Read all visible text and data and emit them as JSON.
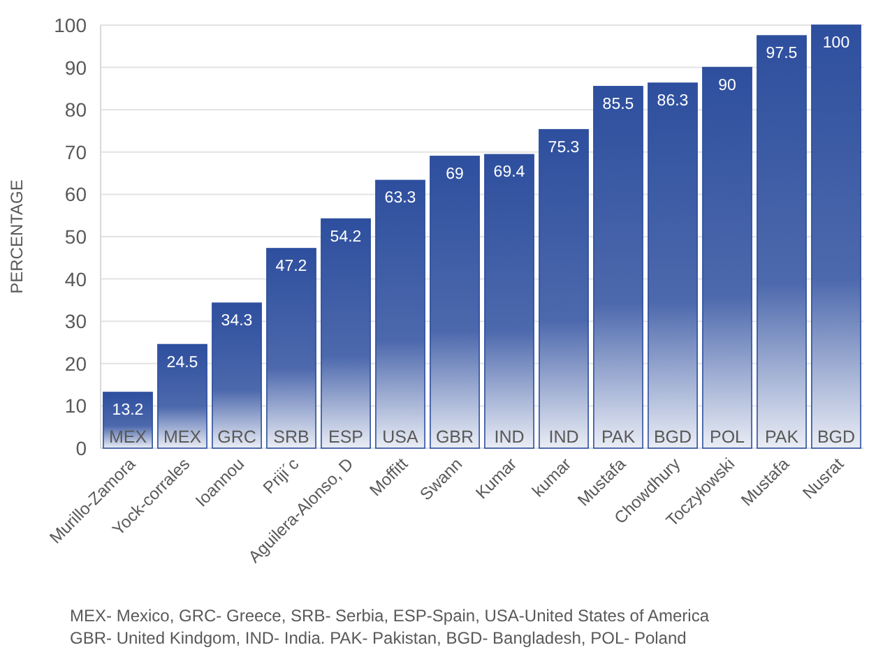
{
  "chart_data": {
    "type": "bar",
    "ylabel": "PERCENTAGE",
    "categories": [
      "Murillo-Zamora",
      "Yock-corrales",
      "Ioannou",
      "Priji´c",
      "Aguilera-Alonso, D",
      "Moffitt",
      "Swann",
      "Kumar",
      "kumar",
      "Mustafa",
      "Chowdhury",
      "Toczyłowski",
      "Mustafa",
      "Nusrat"
    ],
    "values": [
      13.2,
      24.5,
      34.3,
      47.2,
      54.2,
      63.3,
      69,
      69.4,
      75.3,
      85.5,
      86.3,
      90,
      97.5,
      100
    ],
    "color": "#2e4f9e",
    "data_labels": true,
    "ylim": [
      0,
      100
    ],
    "yticks": [
      0,
      10,
      20,
      30,
      40,
      50,
      60,
      70,
      80,
      90,
      100
    ],
    "grid": "y",
    "annotations": [
      "MEX",
      "MEX",
      "GRC",
      "SRB",
      "ESP",
      "USA",
      "GBR",
      "IND",
      "IND",
      "PAK",
      "BGD",
      "POL",
      "PAK",
      "BGD",
      "MEX- Mexico, GRC- Greece, SRB- Serbia, ESP-Spain, USA-United States of America",
      "GBR- United Kindgom, IND- India. PAK- Pakistan, BGD- Bangladesh, POL- Poland"
    ]
  }
}
